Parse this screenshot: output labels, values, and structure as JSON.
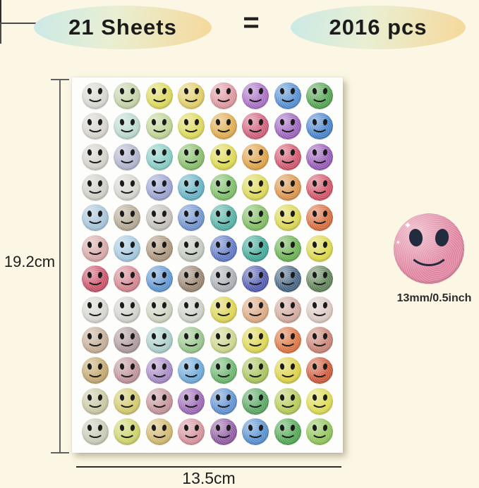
{
  "header": {
    "left_badge_label": "21 Sheets",
    "equals_label": "=",
    "right_badge_label": "2016 pcs"
  },
  "colors": {
    "background": "#fbf7e4",
    "badge_gradient": [
      "#cbe9e7",
      "#e9efd2",
      "#f6d89a"
    ],
    "dimension_line": "#616161",
    "face_features": "#1c1c1c"
  },
  "dimensions": {
    "sheet_height_label": "19.2cm",
    "sheet_width_label": "13.5cm",
    "sticker_diameter_label": "13mm/0.5inch"
  },
  "sheet": {
    "rows": 12,
    "cols": 8,
    "sticker_colors": [
      [
        "#d6d8cf",
        "#c3d2a3",
        "#dcd952",
        "#e2cd5f",
        "#df939d",
        "#a669c4",
        "#4c8bd2",
        "#4da14b"
      ],
      [
        "#d6d4cc",
        "#badace",
        "#bdd490",
        "#ded952",
        "#e0aa47",
        "#d05876",
        "#9a5dbd",
        "#3f7fcb"
      ],
      [
        "#d4d2ca",
        "#aeb2cc",
        "#82ccc5",
        "#83bd63",
        "#ded949",
        "#dfa040",
        "#d34f68",
        "#9354b6"
      ],
      [
        "#cfcfc7",
        "#d6d5cf",
        "#97a0d2",
        "#5fb1c4",
        "#78bd62",
        "#dcd94e",
        "#dd9143",
        "#d34d62"
      ],
      [
        "#a3c3da",
        "#b3a690",
        "#c3c1b9",
        "#6a90ce",
        "#4dafa3",
        "#7cbb5c",
        "#dcd74a",
        "#d96736"
      ],
      [
        "#d8a5a5",
        "#a0c8e0",
        "#ab9377",
        "#c2cabd",
        "#5873c4",
        "#3aa795",
        "#64b04b",
        "#ded944"
      ],
      [
        "#cc4a62",
        "#d4808a",
        "#5a94d4",
        "#97816b",
        "#a9adb3",
        "#4b55b0",
        "#3e5f7e",
        "#5b7f52"
      ],
      [
        "#d8d7cf",
        "#d2d2cc",
        "#ced4c0",
        "#cdd2c8",
        "#ddd64e",
        "#dca77f",
        "#d2a89c",
        "#dcc9c2"
      ],
      [
        "#c3ab91",
        "#ab979b",
        "#a8cfcb",
        "#95c587",
        "#ccd687",
        "#ded74c",
        "#dd6f3a",
        "#c97f70"
      ],
      [
        "#c2a567",
        "#bd8f96",
        "#a586c6",
        "#68a8da",
        "#66b468",
        "#a6c456",
        "#ddd23e",
        "#cf5432"
      ],
      [
        "#c9c7a0",
        "#d3c967",
        "#c39097",
        "#9a63b5",
        "#5a8ed2",
        "#51a55b",
        "#b3cb50",
        "#dedb4a"
      ],
      [
        "#c6cbb3",
        "#ccd362",
        "#d2b668",
        "#d78f99",
        "#8d54a0",
        "#4e8cd0",
        "#4aa64c",
        "#8cc351"
      ]
    ]
  },
  "single_sticker": {
    "color": "#e2819f",
    "eye_color": "#232c3e",
    "sparkle_icon": "✦"
  }
}
